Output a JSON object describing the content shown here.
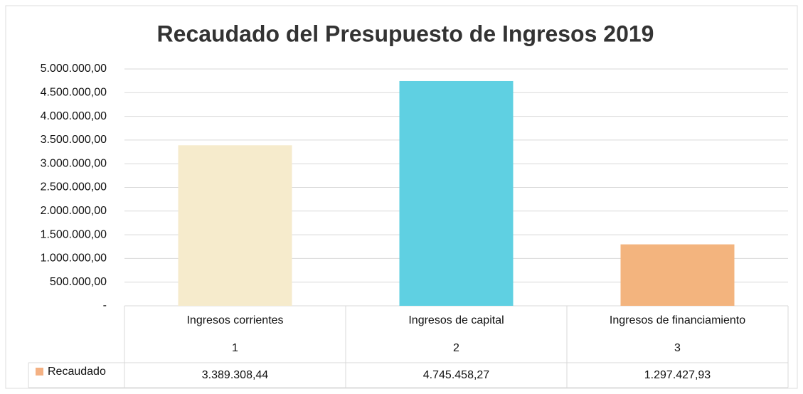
{
  "chart_data": {
    "type": "bar",
    "title": "Recaudado del Presupuesto de Ingresos 2019",
    "categories": [
      "Ingresos corrientes",
      "Ingresos de capital",
      "Ingresos de financiamiento"
    ],
    "category_codes": [
      "1",
      "2",
      "3"
    ],
    "series": [
      {
        "name": "Recaudado",
        "color": "#f4b183",
        "bar_colors": [
          "#f6ebcc",
          "#5fd0e2",
          "#f3b47e"
        ],
        "values": [
          3389308.44,
          4745458.27,
          1297427.93
        ],
        "value_labels": [
          "3.389.308,44",
          "4.745.458,27",
          "1.297.427,93"
        ]
      }
    ],
    "ylim": [
      0,
      5000000
    ],
    "yticks": [
      {
        "value": 0,
        "label": "-"
      },
      {
        "value": 500000,
        "label": "500.000,00"
      },
      {
        "value": 1000000,
        "label": "1.000.000,00"
      },
      {
        "value": 1500000,
        "label": "1.500.000,00"
      },
      {
        "value": 2000000,
        "label": "2.000.000,00"
      },
      {
        "value": 2500000,
        "label": "2.500.000,00"
      },
      {
        "value": 3000000,
        "label": "3.000.000,00"
      },
      {
        "value": 3500000,
        "label": "3.500.000,00"
      },
      {
        "value": 4000000,
        "label": "4.000.000,00"
      },
      {
        "value": 4500000,
        "label": "4.500.000,00"
      },
      {
        "value": 5000000,
        "label": "5.000.000,00"
      }
    ],
    "grid": true
  }
}
